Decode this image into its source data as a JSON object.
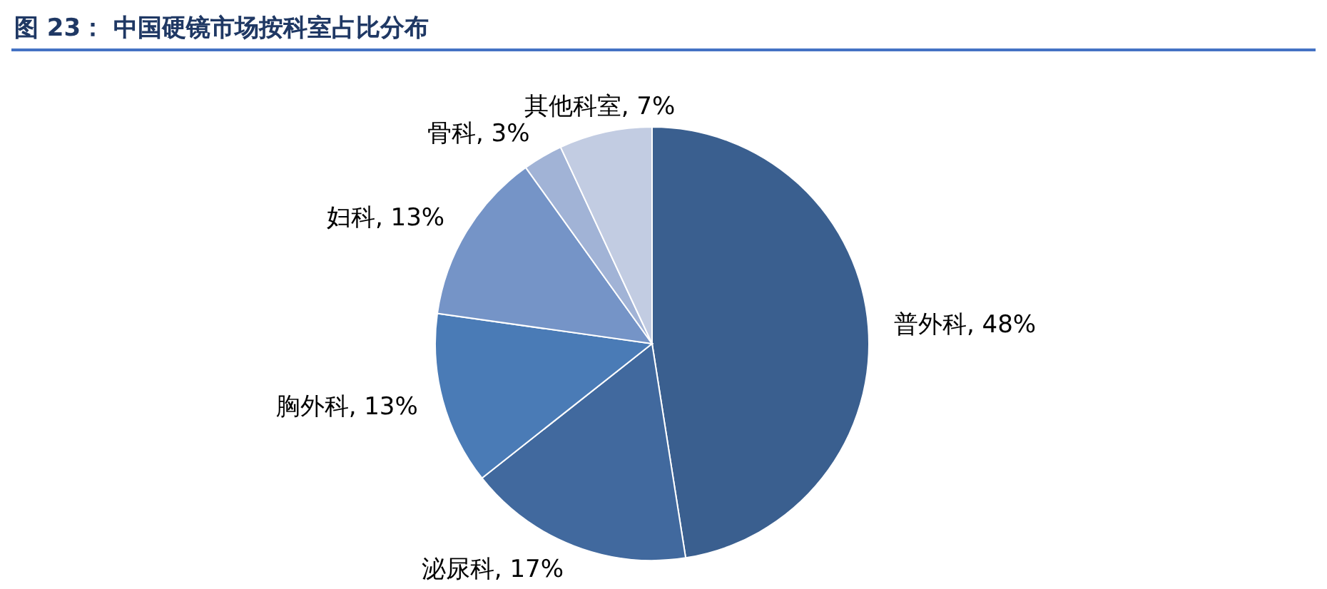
{
  "chart_data": {
    "type": "pie",
    "title": "图 23： 中国硬镜市场按科室占比分布",
    "categories": [
      "普外科",
      "泌尿科",
      "胸外科",
      "妇科",
      "骨科",
      "其他科室"
    ],
    "values": [
      48,
      17,
      13,
      13,
      3,
      7
    ],
    "colors": [
      "#3a5f8f",
      "#41699e",
      "#4a7bb6",
      "#7594c7",
      "#a1b3d6",
      "#c2cce2"
    ],
    "value_labels": [
      ", 48%",
      ", 17%",
      ", 13%",
      ", 13%",
      ", 3%",
      ", 7%"
    ],
    "legend": false
  }
}
